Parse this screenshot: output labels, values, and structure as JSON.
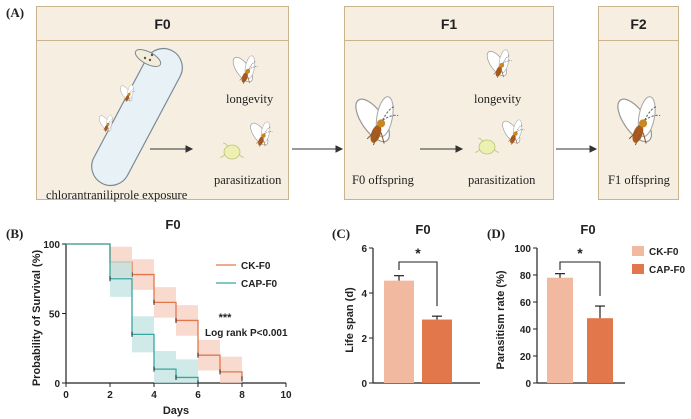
{
  "panel_a": {
    "label": "(A)",
    "boxes": [
      {
        "title": "F0"
      },
      {
        "title": "F1"
      },
      {
        "title": "F2"
      }
    ],
    "f0": {
      "exposure": "chlorantraniliprole exposure",
      "longevity": "longevity",
      "parasitization": "parasitization"
    },
    "f1": {
      "offspring": "F0 offspring",
      "longevity": "longevity",
      "parasitization": "parasitization"
    },
    "f2": {
      "offspring": "F1 offspring"
    }
  },
  "colors": {
    "ck": "#f1b9a0",
    "cap": "#e2774b",
    "cap_line": "#3aa6a0",
    "ck_line": "#e2774b",
    "box_bg": "#f6efe1",
    "box_border": "#c9b48d"
  },
  "chart_data": [
    {
      "panel": "(B)",
      "type": "line",
      "title": "F0",
      "xlabel": "Days",
      "ylabel": "Probability of Survival (%)",
      "xlim": [
        0,
        10
      ],
      "ylim": [
        0,
        100
      ],
      "xticks": [
        0,
        2,
        4,
        6,
        8,
        10
      ],
      "yticks": [
        0,
        50,
        100
      ],
      "series": [
        {
          "name": "CK-F0",
          "x": [
            0,
            2,
            3,
            4,
            5,
            6,
            7,
            8
          ],
          "y": [
            100,
            87,
            78,
            58,
            45,
            20,
            8,
            3
          ]
        },
        {
          "name": "CAP-F0",
          "x": [
            0,
            2,
            3,
            4,
            5,
            6
          ],
          "y": [
            100,
            75,
            35,
            10,
            4,
            0
          ]
        }
      ],
      "annotation": {
        "stars": "***",
        "text": "Log rank P<0.001"
      }
    },
    {
      "panel": "(C)",
      "type": "bar",
      "title": "F0",
      "ylabel": "Life span (d)",
      "ylim": [
        0,
        6
      ],
      "yticks": [
        0,
        2,
        4,
        6
      ],
      "categories": [
        "CK-F0",
        "CAP-F0"
      ],
      "values": [
        4.55,
        2.82
      ],
      "errors": [
        0.22,
        0.15
      ],
      "significance": "*"
    },
    {
      "panel": "(D)",
      "type": "bar",
      "title": "F0",
      "ylabel": "Parasitism rate (%)",
      "ylim": [
        0,
        100
      ],
      "yticks": [
        0,
        20,
        40,
        60,
        80,
        100
      ],
      "categories": [
        "CK-F0",
        "CAP-F0"
      ],
      "values": [
        78,
        48
      ],
      "errors": [
        3,
        9
      ],
      "significance": "*"
    }
  ],
  "legend_cd": [
    "CK-F0",
    "CAP-F0"
  ]
}
